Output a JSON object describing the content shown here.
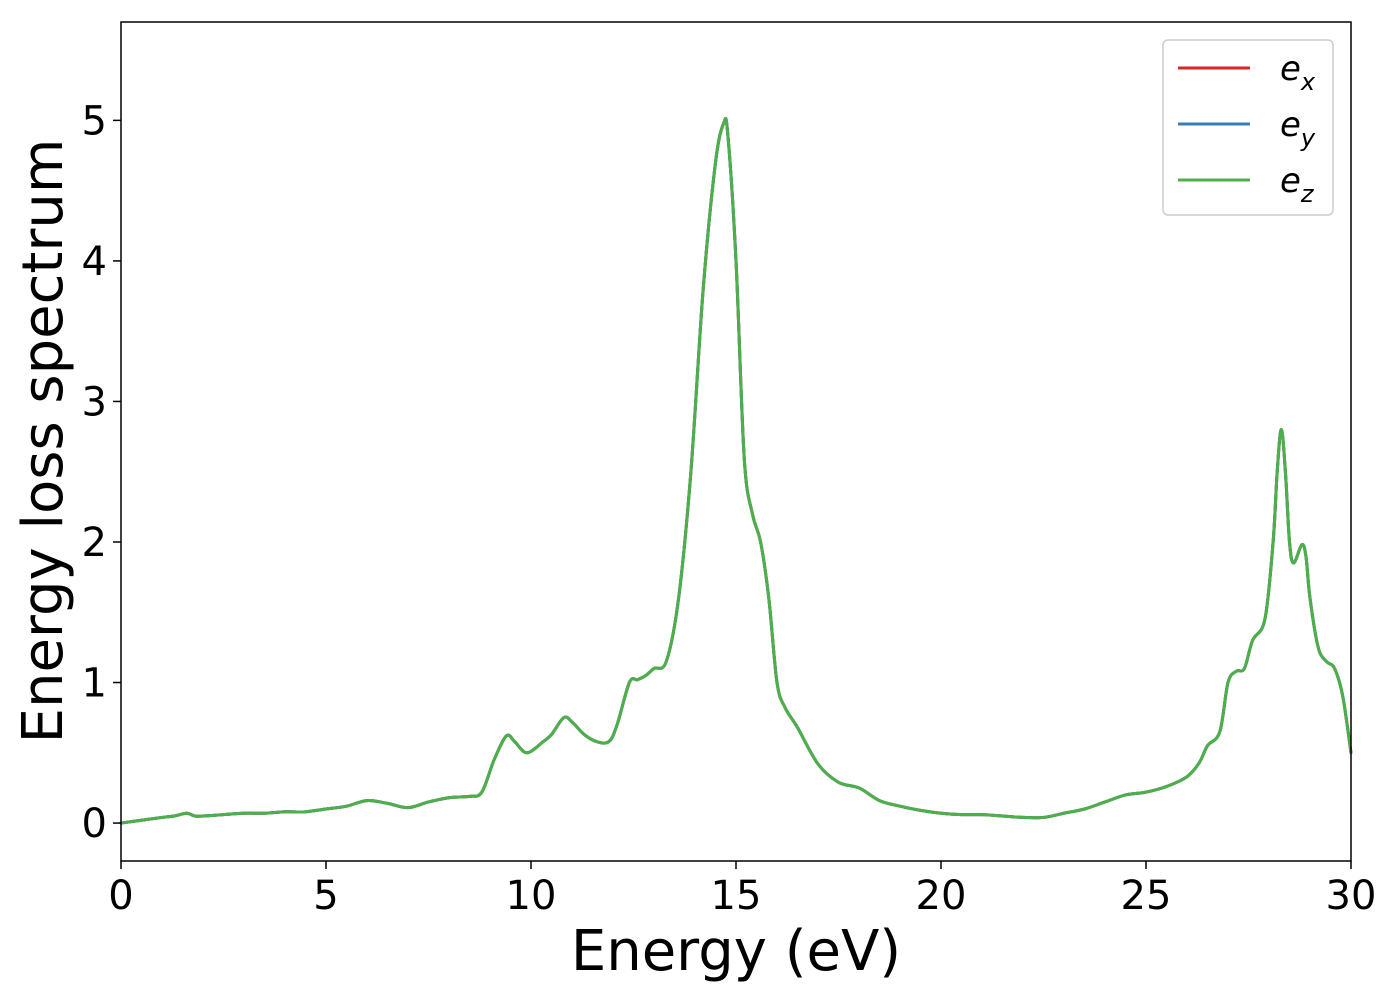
{
  "chart_data": {
    "type": "line",
    "title": "",
    "xlabel": "Energy (eV)",
    "ylabel": "Energy loss spectrum",
    "xlim": [
      0,
      30
    ],
    "ylim": [
      -0.27,
      5.7
    ],
    "xticks": [
      0,
      5,
      10,
      15,
      20,
      25,
      30
    ],
    "yticks": [
      0,
      1,
      2,
      3,
      4,
      5
    ],
    "xtick_labels": [
      "0",
      "5",
      "10",
      "15",
      "20",
      "25",
      "30"
    ],
    "ytick_labels": [
      "0",
      "1",
      "2",
      "3",
      "4",
      "5"
    ],
    "grid": false,
    "legend_position": "top-right",
    "x": [
      0,
      0.5,
      1.0,
      1.3,
      1.6,
      1.8,
      2.0,
      2.5,
      3.0,
      3.5,
      4.0,
      4.5,
      5.0,
      5.5,
      6.0,
      6.5,
      7.0,
      7.5,
      8.0,
      8.5,
      8.8,
      9.1,
      9.4,
      9.6,
      9.9,
      10.3,
      10.5,
      10.8,
      11.0,
      11.3,
      11.6,
      11.9,
      12.1,
      12.4,
      12.6,
      12.8,
      13.0,
      13.3,
      13.6,
      13.9,
      14.2,
      14.5,
      14.7,
      14.8,
      15.0,
      15.2,
      15.4,
      15.6,
      15.8,
      16.0,
      16.2,
      16.5,
      17.0,
      17.5,
      18.0,
      18.5,
      19.0,
      19.5,
      20.0,
      20.5,
      21.0,
      21.5,
      22.0,
      22.5,
      23.0,
      23.5,
      24.0,
      24.5,
      25.0,
      25.5,
      26.0,
      26.3,
      26.5,
      26.8,
      27.0,
      27.2,
      27.4,
      27.6,
      27.9,
      28.1,
      28.2,
      28.3,
      28.4,
      28.5,
      28.6,
      28.8,
      28.9,
      29.0,
      29.2,
      29.4,
      29.6,
      29.8,
      30.0
    ],
    "series": [
      {
        "name": "e_x",
        "color": "#d62728",
        "values": [
          0.0,
          0.02,
          0.04,
          0.05,
          0.07,
          0.05,
          0.05,
          0.06,
          0.07,
          0.07,
          0.08,
          0.08,
          0.1,
          0.12,
          0.16,
          0.14,
          0.11,
          0.15,
          0.18,
          0.19,
          0.22,
          0.45,
          0.62,
          0.58,
          0.5,
          0.58,
          0.63,
          0.75,
          0.72,
          0.63,
          0.58,
          0.58,
          0.7,
          1.0,
          1.02,
          1.05,
          1.1,
          1.15,
          1.6,
          2.5,
          3.8,
          4.7,
          4.98,
          4.9,
          4.0,
          2.6,
          2.2,
          2.0,
          1.6,
          1.0,
          0.82,
          0.68,
          0.42,
          0.29,
          0.25,
          0.16,
          0.12,
          0.09,
          0.07,
          0.06,
          0.06,
          0.05,
          0.04,
          0.04,
          0.07,
          0.1,
          0.15,
          0.2,
          0.22,
          0.26,
          0.33,
          0.43,
          0.55,
          0.65,
          1.0,
          1.08,
          1.1,
          1.3,
          1.45,
          2.0,
          2.5,
          2.8,
          2.5,
          2.0,
          1.85,
          1.98,
          1.9,
          1.6,
          1.25,
          1.15,
          1.1,
          0.9,
          0.5
        ]
      },
      {
        "name": "e_y",
        "color": "#377eb8",
        "values": [
          0.0,
          0.02,
          0.04,
          0.05,
          0.07,
          0.05,
          0.05,
          0.06,
          0.07,
          0.07,
          0.08,
          0.08,
          0.1,
          0.12,
          0.16,
          0.14,
          0.11,
          0.15,
          0.18,
          0.19,
          0.22,
          0.45,
          0.62,
          0.58,
          0.5,
          0.58,
          0.63,
          0.75,
          0.72,
          0.63,
          0.58,
          0.58,
          0.7,
          1.0,
          1.02,
          1.05,
          1.1,
          1.15,
          1.6,
          2.5,
          3.8,
          4.7,
          4.98,
          4.9,
          4.0,
          2.6,
          2.2,
          2.0,
          1.6,
          1.0,
          0.82,
          0.68,
          0.42,
          0.29,
          0.25,
          0.16,
          0.12,
          0.09,
          0.07,
          0.06,
          0.06,
          0.05,
          0.04,
          0.04,
          0.07,
          0.1,
          0.15,
          0.2,
          0.22,
          0.26,
          0.33,
          0.43,
          0.55,
          0.65,
          1.0,
          1.08,
          1.1,
          1.3,
          1.45,
          2.0,
          2.5,
          2.8,
          2.5,
          2.0,
          1.85,
          1.98,
          1.9,
          1.6,
          1.25,
          1.15,
          1.1,
          0.9,
          0.5
        ]
      },
      {
        "name": "e_z",
        "color": "#4daf4a",
        "values": [
          0.0,
          0.02,
          0.04,
          0.05,
          0.07,
          0.05,
          0.05,
          0.06,
          0.07,
          0.07,
          0.08,
          0.08,
          0.1,
          0.12,
          0.16,
          0.14,
          0.11,
          0.15,
          0.18,
          0.19,
          0.22,
          0.45,
          0.62,
          0.58,
          0.5,
          0.58,
          0.63,
          0.75,
          0.72,
          0.63,
          0.58,
          0.58,
          0.7,
          1.0,
          1.02,
          1.05,
          1.1,
          1.15,
          1.6,
          2.5,
          3.8,
          4.7,
          4.98,
          4.9,
          4.0,
          2.6,
          2.2,
          2.0,
          1.6,
          1.0,
          0.82,
          0.68,
          0.42,
          0.29,
          0.25,
          0.16,
          0.12,
          0.09,
          0.07,
          0.06,
          0.06,
          0.05,
          0.04,
          0.04,
          0.07,
          0.1,
          0.15,
          0.2,
          0.22,
          0.26,
          0.33,
          0.43,
          0.55,
          0.65,
          1.0,
          1.08,
          1.1,
          1.3,
          1.45,
          2.0,
          2.5,
          2.8,
          2.5,
          2.0,
          1.85,
          1.98,
          1.9,
          1.6,
          1.25,
          1.15,
          1.1,
          0.9,
          0.5
        ]
      }
    ],
    "legend": [
      {
        "base": "e",
        "sub": "x",
        "color": "#d62728"
      },
      {
        "base": "e",
        "sub": "y",
        "color": "#377eb8"
      },
      {
        "base": "e",
        "sub": "z",
        "color": "#4daf4a"
      }
    ]
  }
}
